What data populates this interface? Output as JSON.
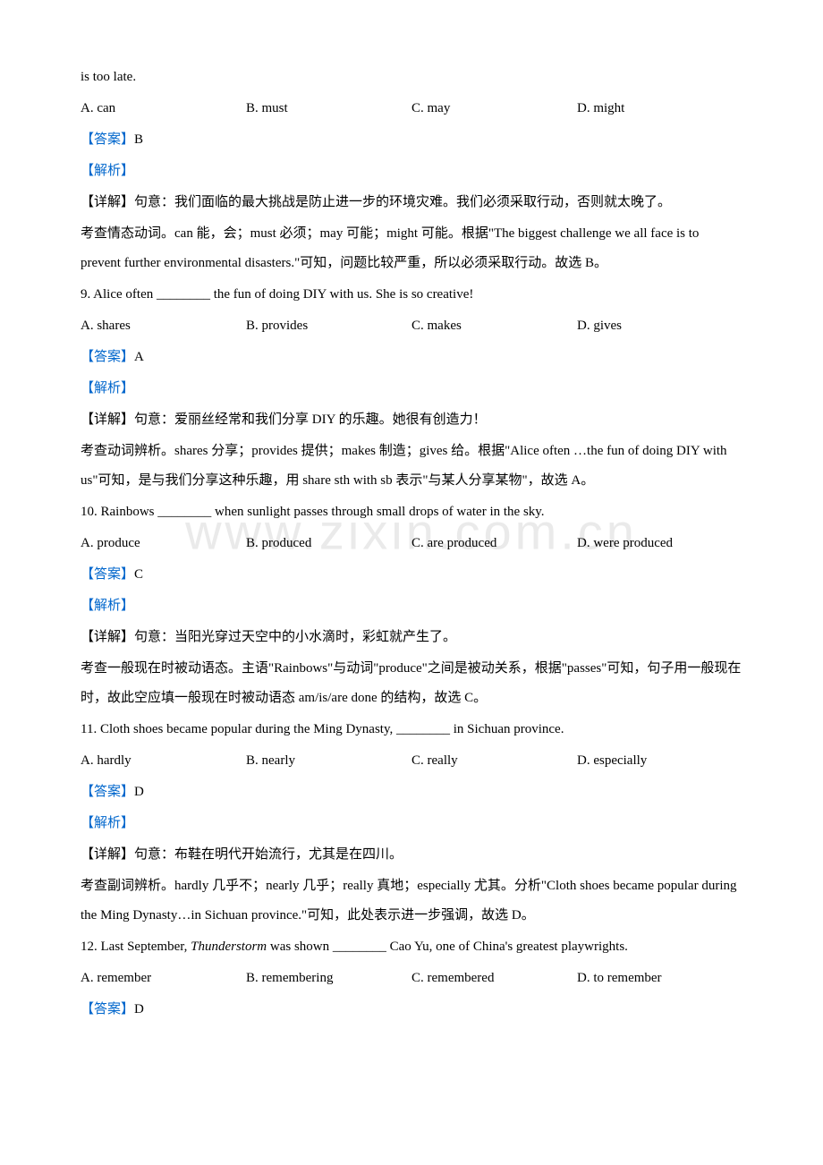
{
  "watermark": "www.zixin.com.cn",
  "colors": {
    "text": "#000000",
    "accent": "#0066cc",
    "watermark": "rgba(180,180,180,0.28)",
    "background": "#ffffff"
  },
  "q8": {
    "stem_cont": "is too late.",
    "opts": {
      "a": "A. can",
      "b": "B. must",
      "c": "C. may",
      "d": "D. might"
    },
    "answer_label": "【答案】",
    "answer": "B",
    "analysis_label": "【解析】",
    "detail1": "【详解】句意：我们面临的最大挑战是防止进一步的环境灾难。我们必须采取行动，否则就太晚了。",
    "detail2": "考查情态动词。can 能，会；must 必须；may 可能；might 可能。根据\"The biggest challenge we all face is to prevent further environmental disasters.\"可知，问题比较严重，所以必须采取行动。故选 B。"
  },
  "q9": {
    "stem": "9. Alice often ________ the fun of doing DIY with us. She is so creative!",
    "opts": {
      "a": "A. shares",
      "b": "B. provides",
      "c": "C. makes",
      "d": "D. gives"
    },
    "answer_label": "【答案】",
    "answer": "A",
    "analysis_label": "【解析】",
    "detail1": "【详解】句意：爱丽丝经常和我们分享 DIY 的乐趣。她很有创造力！",
    "detail2": "考查动词辨析。shares 分享；provides 提供；makes 制造；gives 给。根据\"Alice often …the fun of doing DIY with us\"可知，是与我们分享这种乐趣，用 share sth with sb 表示\"与某人分享某物\"，故选 A。"
  },
  "q10": {
    "stem": "10. Rainbows ________ when sunlight passes through small drops of water in the sky.",
    "opts": {
      "a": "A. produce",
      "b": "B. produced",
      "c": "C. are produced",
      "d": "D. were produced"
    },
    "answer_label": "【答案】",
    "answer": "C",
    "analysis_label": "【解析】",
    "detail1": "【详解】句意：当阳光穿过天空中的小水滴时，彩虹就产生了。",
    "detail2": "考查一般现在时被动语态。主语\"Rainbows\"与动词\"produce\"之间是被动关系，根据\"passes\"可知，句子用一般现在时，故此空应填一般现在时被动语态 am/is/are done 的结构，故选 C。"
  },
  "q11": {
    "stem": "11. Cloth shoes became popular during the Ming Dynasty, ________ in Sichuan province.",
    "opts": {
      "a": "A. hardly",
      "b": "B. nearly",
      "c": "C. really",
      "d": "D. especially"
    },
    "answer_label": "【答案】",
    "answer": "D",
    "analysis_label": "【解析】",
    "detail1": "【详解】句意：布鞋在明代开始流行，尤其是在四川。",
    "detail2": "考查副词辨析。hardly 几乎不；nearly 几乎；really 真地；especially 尤其。分析\"Cloth shoes became popular during the Ming Dynasty…in Sichuan province.\"可知，此处表示进一步强调，故选 D。"
  },
  "q12": {
    "stem_pre": "12. Last September, ",
    "stem_italic": "Thunderstorm",
    "stem_post": " was shown ________ Cao Yu, one of China's greatest playwrights.",
    "opts": {
      "a": "A. remember",
      "b": "B. remembering",
      "c": "C. remembered",
      "d": "D. to remember"
    },
    "answer_label": "【答案】",
    "answer": "D"
  }
}
